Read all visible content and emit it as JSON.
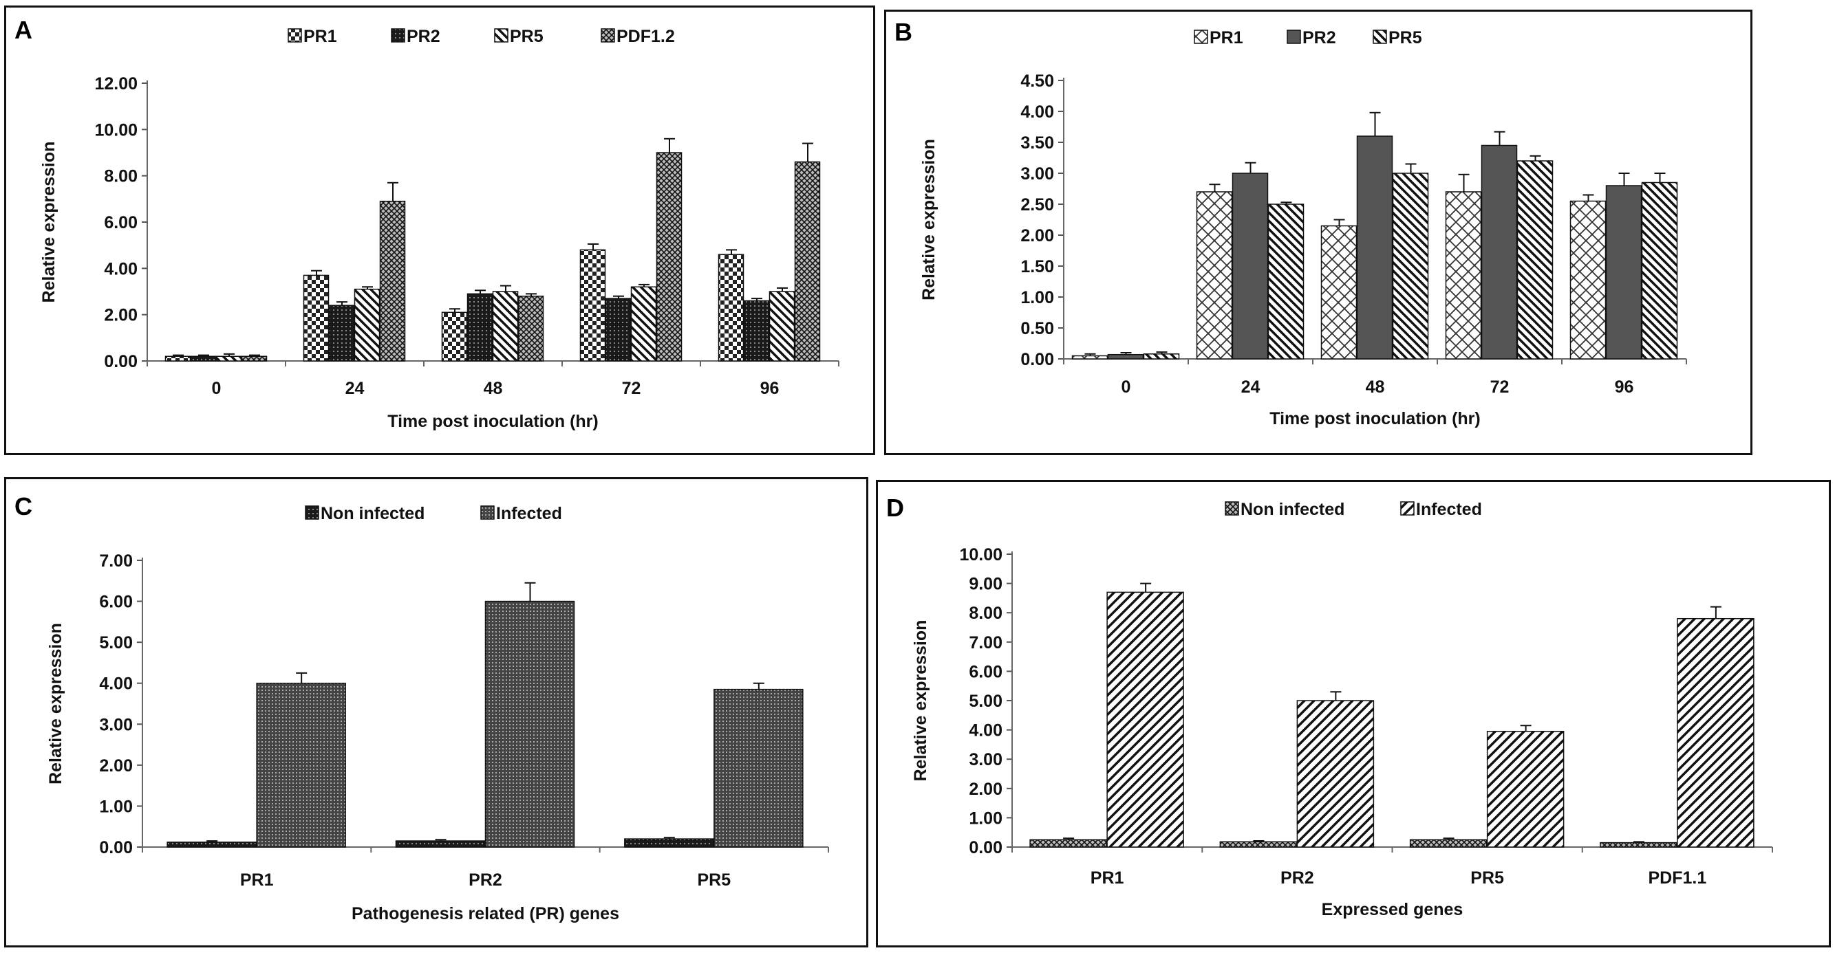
{
  "figure": {
    "panels": [
      {
        "id": "A",
        "label": "A",
        "chart_data": {
          "type": "bar",
          "title": "",
          "xlabel": "Time post inoculation  (hr)",
          "ylabel": "Relative expression",
          "categories": [
            "0",
            "24",
            "48",
            "72",
            "96"
          ],
          "ylim": [
            0,
            12
          ],
          "yticks": [
            "0.00",
            "2.00",
            "4.00",
            "6.00",
            "8.00",
            "10.00",
            "12.00"
          ],
          "series": [
            {
              "name": "PR1",
              "pattern": "checker",
              "values": [
                0.2,
                3.7,
                2.1,
                4.8,
                4.6
              ],
              "errors": [
                0.05,
                0.2,
                0.15,
                0.25,
                0.2
              ]
            },
            {
              "name": "PR2",
              "pattern": "dark-grid",
              "values": [
                0.2,
                2.4,
                2.9,
                2.7,
                2.6
              ],
              "errors": [
                0.05,
                0.15,
                0.15,
                0.1,
                0.1
              ]
            },
            {
              "name": "PR5",
              "pattern": "backslash",
              "values": [
                0.2,
                3.1,
                3.0,
                3.2,
                3.0
              ],
              "errors": [
                0.1,
                0.1,
                0.25,
                0.1,
                0.15
              ]
            },
            {
              "name": "PDF1.2",
              "pattern": "cross",
              "values": [
                0.2,
                6.9,
                2.8,
                9.0,
                8.6
              ],
              "errors": [
                0.05,
                0.8,
                0.1,
                0.6,
                0.8
              ]
            }
          ]
        }
      },
      {
        "id": "B",
        "label": "B",
        "chart_data": {
          "type": "bar",
          "title": "",
          "xlabel": "Time post inoculation  (hr)",
          "ylabel": "Relative expression",
          "categories": [
            "0",
            "24",
            "48",
            "72",
            "96"
          ],
          "ylim": [
            0,
            4.5
          ],
          "yticks": [
            "0.00",
            "0.50",
            "1.00",
            "1.50",
            "2.00",
            "2.50",
            "3.00",
            "3.50",
            "4.00",
            "4.50"
          ],
          "series": [
            {
              "name": "PR1",
              "pattern": "diag-cross",
              "values": [
                0.05,
                2.7,
                2.15,
                2.7,
                2.55
              ],
              "errors": [
                0.03,
                0.12,
                0.1,
                0.28,
                0.1
              ]
            },
            {
              "name": "PR2",
              "pattern": "gray-solid",
              "values": [
                0.07,
                3.0,
                3.6,
                3.45,
                2.8
              ],
              "errors": [
                0.03,
                0.17,
                0.38,
                0.22,
                0.2
              ]
            },
            {
              "name": "PR5",
              "pattern": "backslash",
              "values": [
                0.08,
                2.5,
                3.0,
                3.2,
                2.85
              ],
              "errors": [
                0.03,
                0.03,
                0.15,
                0.08,
                0.15
              ]
            }
          ]
        }
      },
      {
        "id": "C",
        "label": "C",
        "chart_data": {
          "type": "bar",
          "title": "",
          "xlabel": "Pathogenesis related (PR) genes",
          "ylabel": "Relative expression",
          "categories": [
            "PR1",
            "PR2",
            "PR5"
          ],
          "ylim": [
            0,
            7
          ],
          "yticks": [
            "0.00",
            "1.00",
            "2.00",
            "3.00",
            "4.00",
            "5.00",
            "6.00",
            "7.00"
          ],
          "series": [
            {
              "name": "Non infected",
              "pattern": "dark-grid",
              "values": [
                0.12,
                0.15,
                0.2
              ],
              "errors": [
                0.03,
                0.03,
                0.03
              ]
            },
            {
              "name": "Infected",
              "pattern": "fine-grid",
              "values": [
                4.0,
                6.0,
                3.85
              ],
              "errors": [
                0.25,
                0.45,
                0.15
              ]
            }
          ]
        }
      },
      {
        "id": "D",
        "label": "D",
        "chart_data": {
          "type": "bar",
          "title": "",
          "xlabel": "Expressed genes",
          "ylabel": "Relative expression",
          "categories": [
            "PR1",
            "PR2",
            "PR5",
            "PDF1.1"
          ],
          "ylim": [
            0,
            10
          ],
          "yticks": [
            "0.00",
            "1.00",
            "2.00",
            "3.00",
            "4.00",
            "5.00",
            "6.00",
            "7.00",
            "8.00",
            "9.00",
            "10.00"
          ],
          "series": [
            {
              "name": "Non infected",
              "pattern": "cross",
              "values": [
                0.25,
                0.18,
                0.25,
                0.15
              ],
              "errors": [
                0.05,
                0.03,
                0.05,
                0.03
              ]
            },
            {
              "name": "Infected",
              "pattern": "slash",
              "values": [
                8.7,
                5.0,
                3.95,
                7.8
              ],
              "errors": [
                0.3,
                0.3,
                0.2,
                0.4
              ]
            }
          ]
        }
      }
    ]
  }
}
